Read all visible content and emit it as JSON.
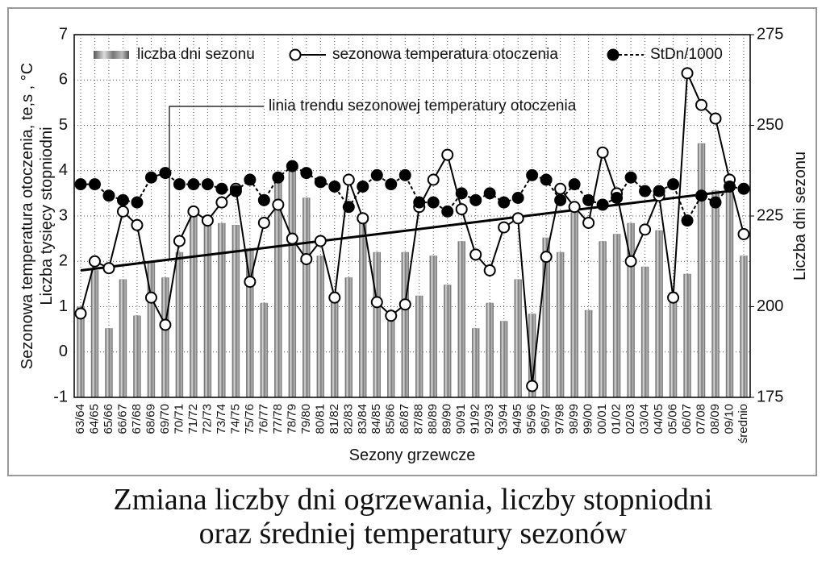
{
  "chart_data": {
    "type": "bar",
    "title": [
      "Zmiana liczby dni ogrzewania, liczby stopniodni",
      "oraz średniej temperatury sezonów"
    ],
    "xlabel": "Sezony grzewcze",
    "ylabel": [
      "Sezonowa temperatura otoczenia, te,s , °C",
      "Liczba tysięcy stopniodni"
    ],
    "y2label": "Liczba dni sezonu",
    "categories": [
      "63/64",
      "64/65",
      "65/66",
      "66/67",
      "67/68",
      "68/69",
      "69/70",
      "70/71",
      "71/72",
      "72/73",
      "73/74",
      "74/75",
      "75/76",
      "76/77",
      "77/78",
      "78/79",
      "79/80",
      "80/81",
      "81/82",
      "82/83",
      "83/84",
      "84/85",
      "85/86",
      "86/87",
      "87/88",
      "88/89",
      "89/90",
      "90/91",
      "91/92",
      "92/93",
      "93/94",
      "94/95",
      "95/96",
      "96/97",
      "97/98",
      "98/99",
      "99/00",
      "00/01",
      "01/02",
      "02/03",
      "03/04",
      "04/05",
      "05/06",
      "06/07",
      "07/08",
      "08/09",
      "09/10",
      "średnio"
    ],
    "series": [
      {
        "name": "liczba dni sezonu",
        "type": "bar",
        "axis": "y2",
        "color": "#8a8a8a",
        "values": [
          200,
          210,
          194,
          207.5,
          197.5,
          212.5,
          208,
          215,
          225,
          222.5,
          223,
          222.5,
          216,
          201,
          236,
          240,
          230,
          214,
          204,
          208,
          224,
          215,
          196,
          215,
          203,
          214,
          206,
          218,
          194,
          201,
          196,
          207.5,
          198,
          219,
          215,
          226,
          199,
          218,
          220,
          223,
          211,
          221,
          204,
          209,
          245,
          232,
          232,
          214
        ]
      },
      {
        "name": "sezonowa temperatura otoczenia",
        "type": "line",
        "axis": "y",
        "color": "#000000",
        "marker": "open",
        "values": [
          0.85,
          2.0,
          1.85,
          3.1,
          2.8,
          1.2,
          0.6,
          2.45,
          3.1,
          2.9,
          3.3,
          3.6,
          1.55,
          2.85,
          3.25,
          2.5,
          2.05,
          2.45,
          1.2,
          3.8,
          2.95,
          1.1,
          0.8,
          1.05,
          3.2,
          3.8,
          4.35,
          3.15,
          2.15,
          1.8,
          2.75,
          2.95,
          -0.75,
          2.1,
          3.6,
          3.2,
          2.85,
          4.4,
          3.5,
          2.0,
          2.7,
          3.45,
          1.2,
          6.15,
          5.45,
          5.15,
          3.8,
          2.6
        ]
      },
      {
        "name": "StDn/1000",
        "type": "line",
        "axis": "y",
        "color": "#000000",
        "marker": "filled",
        "dashed": true,
        "values": [
          3.7,
          3.7,
          3.45,
          3.35,
          3.3,
          3.85,
          3.95,
          3.7,
          3.7,
          3.7,
          3.6,
          3.55,
          3.8,
          3.35,
          3.85,
          4.1,
          3.95,
          3.75,
          3.65,
          3.2,
          3.65,
          3.9,
          3.7,
          3.9,
          3.3,
          3.3,
          3.1,
          3.5,
          3.35,
          3.5,
          3.3,
          3.4,
          3.9,
          3.8,
          3.35,
          3.7,
          3.35,
          3.25,
          3.4,
          3.85,
          3.55,
          3.55,
          3.7,
          2.9,
          3.45,
          3.3,
          3.65,
          3.6
        ]
      }
    ],
    "trend": {
      "name": "linia trendu sezonowej temperatury otoczenia",
      "from": "63/64",
      "to": "09/10",
      "values": [
        1.8,
        3.55
      ]
    },
    "ylim": [
      -1,
      7
    ],
    "yticks": [
      -1,
      0,
      1,
      2,
      3,
      4,
      5,
      6,
      7
    ],
    "y2lim": [
      175,
      275
    ],
    "y2ticks": [
      175,
      200,
      225,
      250,
      275
    ],
    "grid": true,
    "legend": "top"
  }
}
